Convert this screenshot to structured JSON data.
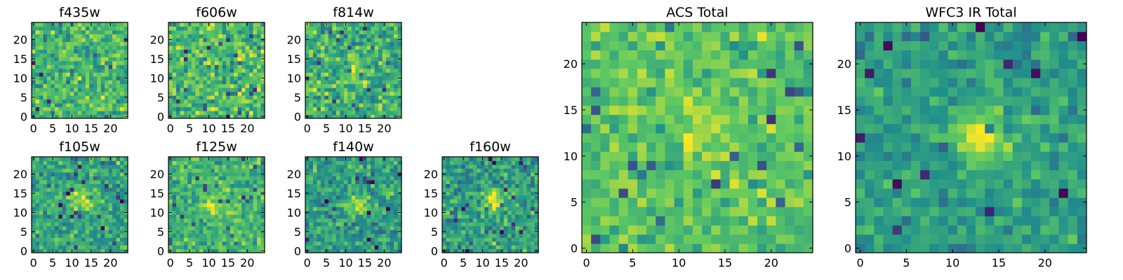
{
  "figure": {
    "colormap": "viridis",
    "colormap_stops": [
      "#440154",
      "#3b528b",
      "#21918c",
      "#5ec962",
      "#fde725"
    ]
  },
  "chart_data": [
    {
      "type": "heatmap",
      "title": "f435w",
      "grid": false,
      "xlim": [
        -0.5,
        24.5
      ],
      "ylim": [
        -0.5,
        24.5
      ],
      "xticks": [
        0,
        5,
        10,
        15,
        20
      ],
      "yticks": [
        0,
        5,
        10,
        15,
        20
      ],
      "size": [
        25,
        25
      ],
      "value_range": [
        0,
        1
      ],
      "mean_level": 0.66,
      "spread": 0.16,
      "blob": null,
      "seed": 11
    },
    {
      "type": "heatmap",
      "title": "f606w",
      "grid": false,
      "xlim": [
        -0.5,
        24.5
      ],
      "ylim": [
        -0.5,
        24.5
      ],
      "xticks": [
        0,
        5,
        10,
        15,
        20
      ],
      "yticks": [
        0,
        5,
        10,
        15,
        20
      ],
      "size": [
        25,
        25
      ],
      "value_range": [
        0,
        1
      ],
      "mean_level": 0.68,
      "spread": 0.17,
      "blob": null,
      "seed": 23
    },
    {
      "type": "heatmap",
      "title": "f814w",
      "grid": false,
      "xlim": [
        -0.5,
        24.5
      ],
      "ylim": [
        -0.5,
        24.5
      ],
      "xticks": [
        0,
        5,
        10,
        15,
        20
      ],
      "yticks": [
        0,
        5,
        10,
        15,
        20
      ],
      "size": [
        25,
        25
      ],
      "value_range": [
        0,
        1
      ],
      "mean_level": 0.64,
      "spread": 0.17,
      "blob": {
        "x": 13,
        "y": 12,
        "amp": 0.18
      },
      "seed": 37
    },
    {
      "type": "heatmap",
      "title": "ACS Total",
      "grid": false,
      "xlim": [
        -0.5,
        24.5
      ],
      "ylim": [
        -0.5,
        24.5
      ],
      "xticks": [
        0,
        5,
        10,
        15,
        20
      ],
      "yticks": [
        0,
        5,
        10,
        15,
        20
      ],
      "size": [
        25,
        25
      ],
      "value_range": [
        0,
        1
      ],
      "mean_level": 0.72,
      "spread": 0.12,
      "blob": {
        "x": 13,
        "y": 13,
        "amp": 0.14
      },
      "seed": 41
    },
    {
      "type": "heatmap",
      "title": "WFC3 IR Total",
      "grid": false,
      "xlim": [
        -0.5,
        24.5
      ],
      "ylim": [
        -0.5,
        24.5
      ],
      "xticks": [
        0,
        5,
        10,
        15,
        20
      ],
      "yticks": [
        0,
        5,
        10,
        15,
        20
      ],
      "size": [
        25,
        25
      ],
      "value_range": [
        0,
        1
      ],
      "mean_level": 0.56,
      "spread": 0.11,
      "blob": {
        "x": 13,
        "y": 12,
        "amp": 0.38
      },
      "seed": 53
    },
    {
      "type": "heatmap",
      "title": "f105w",
      "grid": false,
      "xlim": [
        -0.5,
        24.5
      ],
      "ylim": [
        -0.5,
        24.5
      ],
      "xticks": [
        0,
        5,
        10,
        15,
        20
      ],
      "yticks": [
        0,
        5,
        10,
        15,
        20
      ],
      "size": [
        25,
        25
      ],
      "value_range": [
        0,
        1
      ],
      "mean_level": 0.58,
      "spread": 0.15,
      "blob": {
        "x": 13,
        "y": 13,
        "amp": 0.35
      },
      "seed": 61
    },
    {
      "type": "heatmap",
      "title": "f125w",
      "grid": false,
      "xlim": [
        -0.5,
        24.5
      ],
      "ylim": [
        -0.5,
        24.5
      ],
      "xticks": [
        0,
        5,
        10,
        15,
        20
      ],
      "yticks": [
        0,
        5,
        10,
        15,
        20
      ],
      "size": [
        25,
        25
      ],
      "value_range": [
        0,
        1
      ],
      "mean_level": 0.66,
      "spread": 0.14,
      "blob": {
        "x": 11,
        "y": 12,
        "amp": 0.25
      },
      "seed": 73
    },
    {
      "type": "heatmap",
      "title": "f140w",
      "grid": false,
      "xlim": [
        -0.5,
        24.5
      ],
      "ylim": [
        -0.5,
        24.5
      ],
      "xticks": [
        0,
        5,
        10,
        15,
        20
      ],
      "yticks": [
        0,
        5,
        10,
        15,
        20
      ],
      "size": [
        25,
        25
      ],
      "value_range": [
        0,
        1
      ],
      "mean_level": 0.55,
      "spread": 0.15,
      "blob": {
        "x": 13,
        "y": 12,
        "amp": 0.35
      },
      "seed": 89
    },
    {
      "type": "heatmap",
      "title": "f160w",
      "grid": false,
      "xlim": [
        -0.5,
        24.5
      ],
      "ylim": [
        -0.5,
        24.5
      ],
      "xticks": [
        0,
        5,
        10,
        15,
        20
      ],
      "yticks": [
        0,
        5,
        10,
        15,
        20
      ],
      "size": [
        25,
        25
      ],
      "value_range": [
        0,
        1
      ],
      "mean_level": 0.55,
      "spread": 0.16,
      "blob": {
        "x": 13,
        "y": 13,
        "amp": 0.38
      },
      "seed": 97
    }
  ]
}
